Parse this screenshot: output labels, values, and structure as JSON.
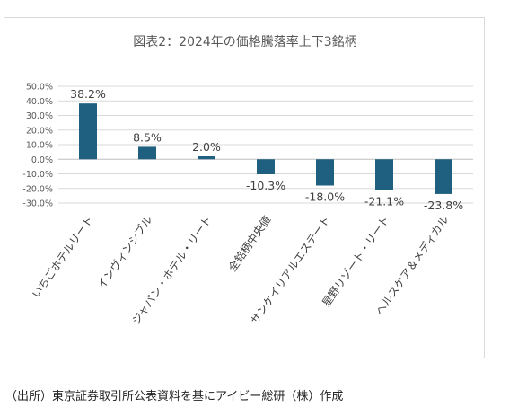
{
  "chart_data": {
    "type": "bar",
    "title": "図表2：2024年の価格騰落率上下3銘柄",
    "categories": [
      "いちごホテルリート",
      "インヴィンシブル",
      "ジャパン・ホテル・リート",
      "全銘柄中央値",
      "サンケイリアルエステート",
      "星野リゾート・リート",
      "ヘルスケア＆メディカル"
    ],
    "values": [
      38.2,
      8.5,
      2.0,
      -10.3,
      -18.0,
      -21.1,
      -23.8
    ],
    "data_labels": [
      "38.2%",
      "8.5%",
      "2.0%",
      "-10.3%",
      "-18.0%",
      "-21.1%",
      "-23.8%"
    ],
    "y_ticks": [
      "50.0%",
      "40.0%",
      "30.0%",
      "20.0%",
      "10.0%",
      "0.0%",
      "-10.0%",
      "-20.0%",
      "-30.0%"
    ],
    "ylim": [
      -30,
      50
    ],
    "xlabel": "",
    "ylabel": "",
    "grid": true,
    "bar_color": "#1f5f7f"
  },
  "footer": {
    "source": "（出所）東京証券取引所公表資料を基にアイビー総研（株）作成"
  }
}
